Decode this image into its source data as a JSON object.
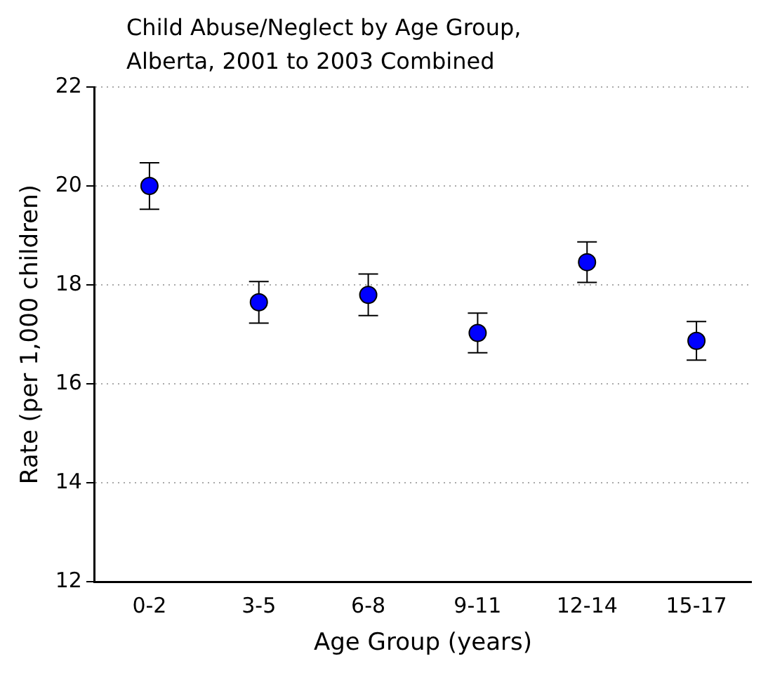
{
  "chart_data": {
    "type": "scatter",
    "title": "Child Abuse/Neglect by Age Group,\nAlberta, 2001 to 2003 Combined",
    "xlabel": "Age Group (years)",
    "ylabel": "Rate (per 1,000 children)",
    "categories": [
      "0-2",
      "3-5",
      "6-8",
      "9-11",
      "12-14",
      "15-17"
    ],
    "values": [
      20.0,
      17.65,
      17.8,
      17.03,
      18.46,
      16.87
    ],
    "errors": [
      0.47,
      0.42,
      0.42,
      0.4,
      0.41,
      0.39
    ],
    "color": "#0000ff",
    "marker": "circle",
    "grid": "y",
    "ylim": [
      12,
      22
    ],
    "yticks": [
      12,
      14,
      16,
      18,
      20,
      22
    ]
  }
}
